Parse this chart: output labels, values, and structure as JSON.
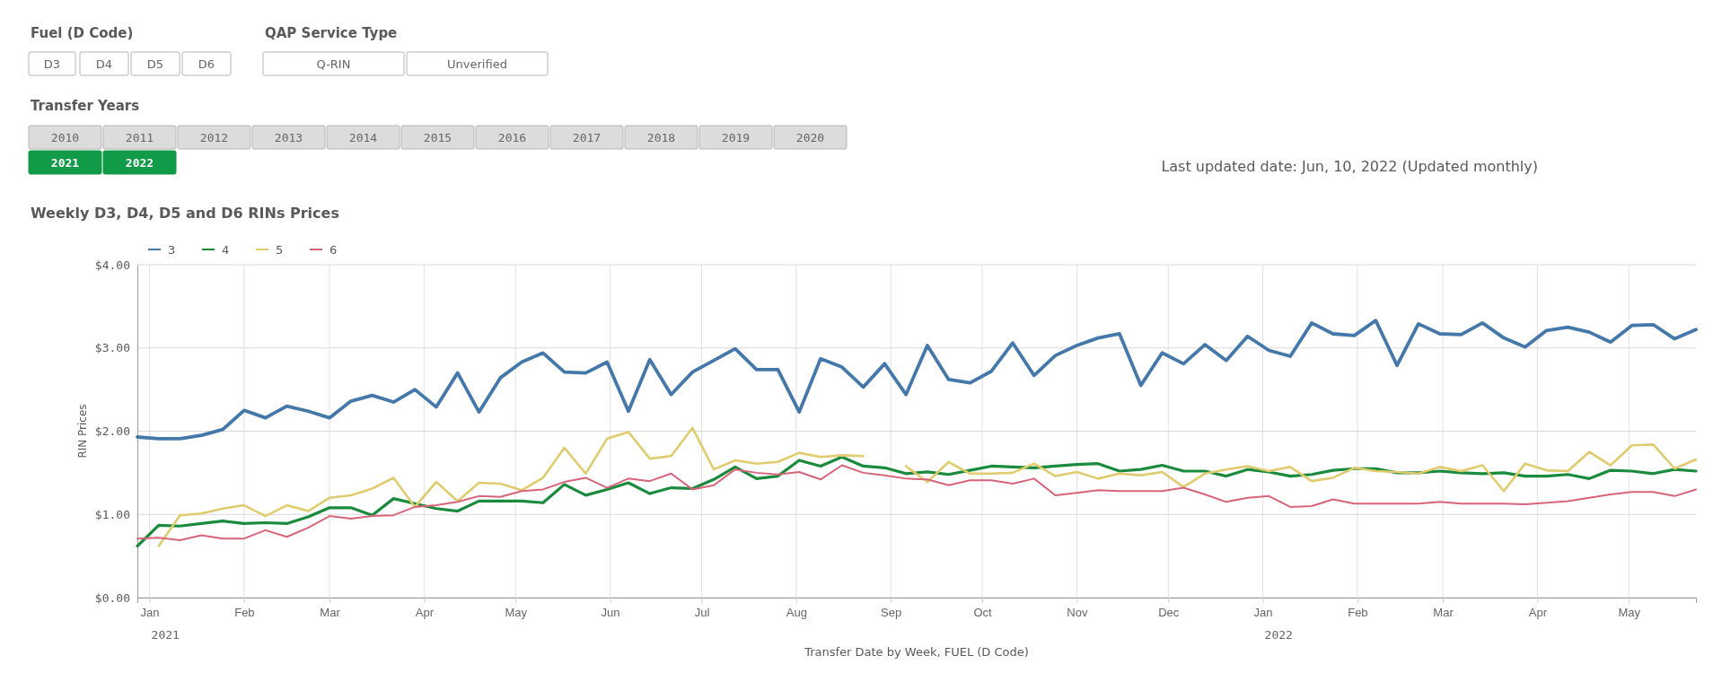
{
  "chart_data": {
    "type": "line",
    "title": "Weekly D3, D4, D5 and D6 RINs Prices",
    "xlabel": "Transfer Date by Week, FUEL (D Code)",
    "ylabel": "RIN Prices",
    "annotations": [
      "Fuel (D Code)",
      "D3",
      "D4",
      "D5",
      "D6",
      "QAP Service Type",
      "Q-RIN",
      "Unverified",
      "Transfer Years",
      "2010",
      "2011",
      "2012",
      "2013",
      "2014",
      "2015",
      "2016",
      "2017",
      "2018",
      "2019",
      "2020",
      "2021",
      "2022",
      "Last updated date: Jun, 10, 2022 (Updated monthly)",
      "2021",
      "2022"
    ],
    "x": [
      "2020-12-28",
      "2021-01-04",
      "2021-01-11",
      "2021-01-18",
      "2021-01-25",
      "2021-02-01",
      "2021-02-08",
      "2021-02-15",
      "2021-02-22",
      "2021-03-01",
      "2021-03-08",
      "2021-03-15",
      "2021-03-22",
      "2021-03-29",
      "2021-04-05",
      "2021-04-12",
      "2021-04-19",
      "2021-04-26",
      "2021-05-03",
      "2021-05-10",
      "2021-05-17",
      "2021-05-24",
      "2021-05-31",
      "2021-06-07",
      "2021-06-14",
      "2021-06-21",
      "2021-06-28",
      "2021-07-05",
      "2021-07-12",
      "2021-07-19",
      "2021-07-26",
      "2021-08-02",
      "2021-08-09",
      "2021-08-16",
      "2021-08-23",
      "2021-08-30",
      "2021-09-06",
      "2021-09-13",
      "2021-09-20",
      "2021-09-27",
      "2021-10-04",
      "2021-10-11",
      "2021-10-18",
      "2021-10-25",
      "2021-11-01",
      "2021-11-08",
      "2021-11-15",
      "2021-11-22",
      "2021-11-29",
      "2021-12-06",
      "2021-12-13",
      "2021-12-20",
      "2021-12-27",
      "2022-01-03",
      "2022-01-10",
      "2022-01-17",
      "2022-01-24",
      "2022-01-31",
      "2022-02-07",
      "2022-02-14",
      "2022-02-21",
      "2022-02-28",
      "2022-03-07",
      "2022-03-14",
      "2022-03-21",
      "2022-03-28",
      "2022-04-04",
      "2022-04-11",
      "2022-04-18",
      "2022-04-25",
      "2022-05-02",
      "2022-05-09",
      "2022-05-16",
      "2022-05-23"
    ],
    "series": [
      {
        "name": "3",
        "color": "#4477aa",
        "values": [
          1.93,
          1.91,
          1.91,
          1.95,
          2.02,
          2.25,
          2.16,
          2.3,
          2.24,
          2.16,
          2.36,
          2.43,
          2.35,
          2.5,
          2.29,
          2.7,
          2.23,
          2.64,
          2.83,
          2.94,
          2.71,
          2.7,
          2.83,
          2.24,
          2.86,
          2.44,
          2.71,
          2.85,
          2.99,
          2.74,
          2.74,
          2.23,
          2.87,
          2.77,
          2.53,
          2.81,
          2.44,
          3.03,
          2.62,
          2.58,
          2.72,
          3.06,
          2.67,
          2.91,
          3.03,
          3.12,
          3.17,
          2.55,
          2.94,
          2.81,
          3.04,
          2.85,
          3.14,
          2.97,
          2.9,
          3.3,
          3.17,
          3.15,
          3.33,
          2.79,
          3.29,
          3.17,
          3.16,
          3.3,
          3.12,
          3.01,
          3.21,
          3.25,
          3.19,
          3.07,
          3.27,
          3.28,
          3.11,
          3.22
        ]
      },
      {
        "name": "4",
        "color": "#1a8a3c",
        "values": [
          0.62,
          0.87,
          0.86,
          0.89,
          0.92,
          0.89,
          0.9,
          0.89,
          0.97,
          1.08,
          1.08,
          0.99,
          1.19,
          1.13,
          1.07,
          1.04,
          1.16,
          1.16,
          1.16,
          1.14,
          1.36,
          1.23,
          1.3,
          1.38,
          1.25,
          1.32,
          1.31,
          1.42,
          1.57,
          1.43,
          1.46,
          1.65,
          1.58,
          1.69,
          1.58,
          1.56,
          1.49,
          1.51,
          1.48,
          1.53,
          1.58,
          1.57,
          1.56,
          1.58,
          1.6,
          1.61,
          1.52,
          1.54,
          1.59,
          1.52,
          1.52,
          1.46,
          1.54,
          1.51,
          1.46,
          1.48,
          1.53,
          1.55,
          1.55,
          1.5,
          1.5,
          1.52,
          1.5,
          1.49,
          1.5,
          1.46,
          1.46,
          1.48,
          1.43,
          1.53,
          1.52,
          1.49,
          1.54,
          1.52
        ]
      },
      {
        "name": "5",
        "color": "#e0cb6e",
        "values": [
          null,
          0.62,
          0.99,
          1.01,
          1.07,
          1.11,
          0.98,
          1.11,
          1.04,
          1.2,
          1.23,
          1.31,
          1.44,
          1.09,
          1.39,
          1.16,
          1.38,
          1.37,
          1.29,
          1.44,
          1.8,
          1.49,
          1.91,
          1.99,
          1.67,
          1.7,
          2.04,
          1.54,
          1.65,
          1.61,
          1.63,
          1.74,
          1.69,
          1.71,
          1.7,
          null,
          1.58,
          1.39,
          1.63,
          1.49,
          1.49,
          1.5,
          1.61,
          1.46,
          1.51,
          1.43,
          1.49,
          1.47,
          1.51,
          1.33,
          1.49,
          1.54,
          1.58,
          1.52,
          1.57,
          1.4,
          1.44,
          1.56,
          1.52,
          1.51,
          1.49,
          1.57,
          1.52,
          1.59,
          1.28,
          1.61,
          1.53,
          1.52,
          1.75,
          1.59,
          1.83,
          1.84,
          1.55,
          1.66
        ]
      },
      {
        "name": "6",
        "color": "#d8647a",
        "values": [
          0.71,
          0.72,
          0.69,
          0.75,
          0.71,
          0.71,
          0.81,
          0.73,
          0.84,
          0.98,
          0.95,
          0.98,
          0.99,
          1.09,
          1.11,
          1.15,
          1.22,
          1.21,
          1.28,
          1.3,
          1.39,
          1.44,
          1.32,
          1.43,
          1.4,
          1.49,
          1.3,
          1.35,
          1.54,
          1.5,
          1.48,
          1.51,
          1.42,
          1.59,
          1.5,
          1.47,
          1.43,
          1.42,
          1.35,
          1.41,
          1.41,
          1.37,
          1.43,
          1.23,
          1.26,
          1.29,
          1.28,
          1.28,
          1.28,
          1.32,
          1.24,
          1.15,
          1.2,
          1.22,
          1.09,
          1.1,
          1.18,
          1.13,
          1.13,
          1.13,
          1.13,
          1.15,
          1.13,
          1.13,
          1.13,
          1.12,
          1.14,
          1.16,
          1.2,
          1.24,
          1.27,
          1.27,
          1.22,
          1.3
        ]
      }
    ],
    "xlim": [
      "2020-12-28",
      "2022-05-23"
    ],
    "xticks": [
      {
        "value": "2021-01-01",
        "label": "Jan"
      },
      {
        "value": "2021-02-01",
        "label": "Feb"
      },
      {
        "value": "2021-03-01",
        "label": "Mar"
      },
      {
        "value": "2021-04-01",
        "label": "Apr"
      },
      {
        "value": "2021-05-01",
        "label": "May"
      },
      {
        "value": "2021-06-01",
        "label": "Jun"
      },
      {
        "value": "2021-07-01",
        "label": "Jul"
      },
      {
        "value": "2021-08-01",
        "label": "Aug"
      },
      {
        "value": "2021-09-01",
        "label": "Sep"
      },
      {
        "value": "2021-10-01",
        "label": "Oct"
      },
      {
        "value": "2021-11-01",
        "label": "Nov"
      },
      {
        "value": "2021-12-01",
        "label": "Dec"
      },
      {
        "value": "2022-01-01",
        "label": "Jan"
      },
      {
        "value": "2022-02-01",
        "label": "Feb"
      },
      {
        "value": "2022-03-01",
        "label": "Mar"
      },
      {
        "value": "2022-04-01",
        "label": "Apr"
      },
      {
        "value": "2022-05-01",
        "label": "May"
      }
    ],
    "ylim": [
      0,
      4
    ],
    "yticks": [
      {
        "value": 0,
        "label": "$0.00"
      },
      {
        "value": 1,
        "label": "$1.00"
      },
      {
        "value": 2,
        "label": "$2.00"
      },
      {
        "value": 3,
        "label": "$3.00"
      },
      {
        "value": 4,
        "label": "$4.00"
      }
    ],
    "grid": true,
    "legend": "top left",
    "marker": "none",
    "line_style": "solid"
  }
}
